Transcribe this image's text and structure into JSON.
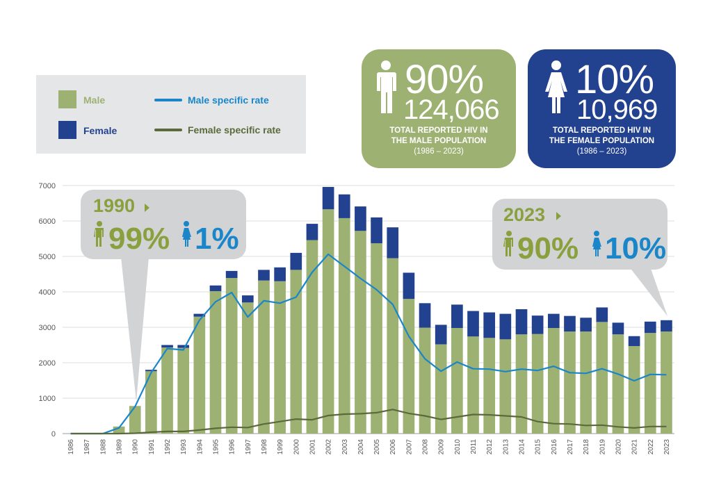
{
  "legend": {
    "male": "Male",
    "female": "Female",
    "male_rate": "Male specific rate",
    "female_rate": "Female specific rate"
  },
  "colors": {
    "male": "#9db272",
    "female": "#22418f",
    "male_rate": "#1a86c9",
    "female_rate": "#5b6a3a",
    "green_card": "#9db272",
    "blue_card": "#22418f",
    "bubble": "#d1d3d4",
    "green_text": "#8aa03e",
    "blue_text": "#1a86c9"
  },
  "cards": {
    "male": {
      "pct": "90%",
      "count": "124,066",
      "line1": "TOTAL REPORTED HIV IN",
      "line2": "THE MALE POPULATION",
      "line3": "(1986 – 2023)",
      "icon": "male-figure-icon"
    },
    "female": {
      "pct": "10%",
      "count": "10,969",
      "line1": "TOTAL REPORTED HIV IN",
      "line2": "THE FEMALE POPULATION",
      "line3": "(1986 – 2023)",
      "icon": "female-figure-icon"
    }
  },
  "callouts": {
    "c1990": {
      "year": "1990",
      "male_pct": "99%",
      "female_pct": "1%"
    },
    "c2023": {
      "year": "2023",
      "male_pct": "90%",
      "female_pct": "10%"
    }
  },
  "chart_data": {
    "type": "bar",
    "stacked": true,
    "categories": [
      "1986",
      "1987",
      "1988",
      "1989",
      "1990",
      "1991",
      "1992",
      "1993",
      "1994",
      "1995",
      "1996",
      "1997",
      "1998",
      "1999",
      "2000",
      "2001",
      "2002",
      "2003",
      "2004",
      "2005",
      "2006",
      "2007",
      "2008",
      "2009",
      "2010",
      "2011",
      "2012",
      "2013",
      "2014",
      "2015",
      "2016",
      "2017",
      "2018",
      "2019",
      "2020",
      "2021",
      "2022",
      "2023"
    ],
    "series": [
      {
        "name": "Male",
        "kind": "bar",
        "values": [
          0,
          0,
          0,
          200,
          780,
          1760,
          2430,
          2420,
          3300,
          4020,
          4390,
          3700,
          4320,
          4300,
          4620,
          5460,
          6330,
          6080,
          5720,
          5370,
          4950,
          3800,
          2990,
          2520,
          2980,
          2740,
          2700,
          2660,
          2800,
          2810,
          2980,
          2880,
          2880,
          3150,
          2800,
          2470,
          2840,
          2880
        ]
      },
      {
        "name": "Female",
        "kind": "bar",
        "values": [
          0,
          0,
          0,
          0,
          0,
          40,
          70,
          80,
          80,
          160,
          200,
          200,
          300,
          390,
          480,
          460,
          630,
          670,
          690,
          730,
          870,
          740,
          690,
          550,
          660,
          720,
          720,
          720,
          710,
          520,
          400,
          440,
          390,
          410,
          330,
          280,
          320,
          320
        ]
      },
      {
        "name": "Male specific rate",
        "kind": "line",
        "values": [
          0,
          0,
          0,
          160,
          760,
          1720,
          2400,
          2360,
          3200,
          3720,
          3980,
          3290,
          3750,
          3680,
          3850,
          4550,
          5060,
          4720,
          4380,
          4060,
          3650,
          2750,
          2110,
          1760,
          2020,
          1830,
          1820,
          1750,
          1820,
          1780,
          1900,
          1720,
          1700,
          1830,
          1680,
          1490,
          1670,
          1660
        ]
      },
      {
        "name": "Female specific rate",
        "kind": "line",
        "values": [
          0,
          0,
          0,
          0,
          10,
          40,
          60,
          60,
          100,
          150,
          180,
          170,
          270,
          340,
          410,
          390,
          510,
          550,
          560,
          590,
          680,
          570,
          500,
          400,
          470,
          540,
          530,
          500,
          470,
          340,
          280,
          270,
          230,
          240,
          190,
          160,
          200,
          200
        ]
      }
    ],
    "ylim": [
      0,
      7000
    ],
    "yticks": [
      0,
      1000,
      2000,
      3000,
      4000,
      5000,
      6000,
      7000
    ],
    "grid": true,
    "legend_position": "top-left"
  }
}
